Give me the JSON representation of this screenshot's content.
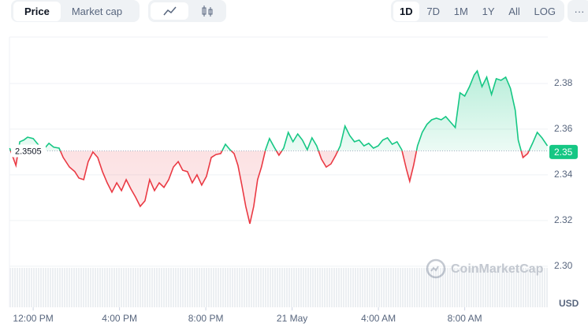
{
  "toolbar": {
    "tabs": [
      "Price",
      "Market cap"
    ],
    "ranges": [
      "1D",
      "7D",
      "1M",
      "1Y",
      "All",
      "LOG"
    ],
    "more": "···"
  },
  "chart_data": {
    "type": "line",
    "x": [
      -1.09,
      -0.8,
      -0.62,
      -0.44,
      -0.26,
      0,
      0.22,
      0.47,
      0.73,
      0.95,
      1.2,
      1.39,
      1.68,
      1.93,
      2.12,
      2.34,
      2.55,
      2.77,
      2.99,
      3.21,
      3.43,
      3.65,
      3.87,
      4.09,
      4.31,
      4.53,
      4.74,
      4.96,
      5.18,
      5.4,
      5.62,
      5.84,
      6.06,
      6.28,
      6.5,
      6.72,
      6.93,
      7.15,
      7.37,
      7.59,
      7.81,
      8.03,
      8.25,
      8.47,
      8.69,
      8.91,
      9.12,
      9.31,
      9.49,
      9.67,
      9.85,
      10.04,
      10.22,
      10.4,
      10.58,
      10.77,
      10.95,
      11.17,
      11.39,
      11.61,
      11.82,
      12.04,
      12.26,
      12.48,
      12.7,
      12.92,
      13.14,
      13.36,
      13.58,
      13.8,
      14.01,
      14.23,
      14.45,
      14.67,
      14.89,
      15.11,
      15.33,
      15.55,
      15.77,
      15.99,
      16.2,
      16.42,
      16.64,
      16.86,
      17.08,
      17.3,
      17.45,
      17.63,
      17.81,
      18.03,
      18.25,
      18.47,
      18.69,
      18.91,
      19.12,
      19.34,
      19.56,
      19.78,
      20,
      20.22,
      20.44,
      20.58,
      20.8,
      21.02,
      21.24,
      21.46,
      21.68,
      21.9,
      22.12,
      22.34,
      22.48,
      22.7,
      22.92,
      23.14,
      23.36,
      23.58,
      23.83
    ],
    "values": [
      2.3517,
      2.3441,
      2.3545,
      2.3552,
      2.3565,
      2.3559,
      2.3534,
      2.351,
      2.3538,
      2.3521,
      2.3517,
      2.3476,
      2.3434,
      2.3414,
      2.3386,
      2.3379,
      2.3458,
      2.35,
      2.3476,
      2.3414,
      2.3365,
      2.3324,
      2.3365,
      2.3331,
      2.3379,
      2.3338,
      2.3303,
      2.3262,
      2.3286,
      2.3379,
      2.3331,
      2.3365,
      2.3345,
      2.3379,
      2.3434,
      2.3458,
      2.342,
      2.3414,
      2.3365,
      2.34,
      2.3355,
      2.3393,
      2.3476,
      2.3489,
      2.3493,
      2.3534,
      2.351,
      2.3493,
      2.3441,
      2.3355,
      2.3262,
      2.3186,
      2.3262,
      2.3379,
      2.3434,
      2.351,
      2.3559,
      2.3521,
      2.3486,
      2.3517,
      2.3586,
      2.3545,
      2.3579,
      2.3552,
      2.351,
      2.3562,
      2.3527,
      2.3469,
      2.3434,
      2.3448,
      2.3483,
      2.3527,
      2.3614,
      2.3572,
      2.3545,
      2.3552,
      2.3527,
      2.3538,
      2.3517,
      2.3527,
      2.3552,
      2.3562,
      2.3534,
      2.3545,
      2.351,
      2.3424,
      2.3372,
      2.3441,
      2.3527,
      2.3586,
      2.3621,
      2.3641,
      2.3648,
      2.3641,
      2.3655,
      2.3631,
      2.3607,
      2.3759,
      2.3745,
      2.3786,
      2.3838,
      2.3855,
      2.3786,
      2.3828,
      2.3752,
      2.3821,
      2.3814,
      2.3828,
      2.3779,
      2.3683,
      2.3552,
      2.3476,
      2.3493,
      2.3538,
      2.3586,
      2.3562,
      2.3527
    ],
    "baseline": 2.3505,
    "current_price": 2.35,
    "up_color": "#16c784",
    "down_color": "#ea3943",
    "xlim": [
      -1.1,
      23.85
    ],
    "ylim": [
      2.282,
      2.4
    ],
    "xticks": [
      {
        "value": 0,
        "label": "12:00 PM"
      },
      {
        "value": 4,
        "label": "4:00 PM"
      },
      {
        "value": 8,
        "label": "8:00 PM"
      },
      {
        "value": 12,
        "label": "21 May"
      },
      {
        "value": 16,
        "label": "4:00 AM"
      },
      {
        "value": 20,
        "label": "8:00 AM"
      }
    ],
    "yticks": [
      {
        "value": 2.3,
        "label": "2.30"
      },
      2.32,
      2.34,
      2.36,
      2.38
    ],
    "grid": true,
    "unit": "USD",
    "watermark": "CoinMarketCap"
  }
}
